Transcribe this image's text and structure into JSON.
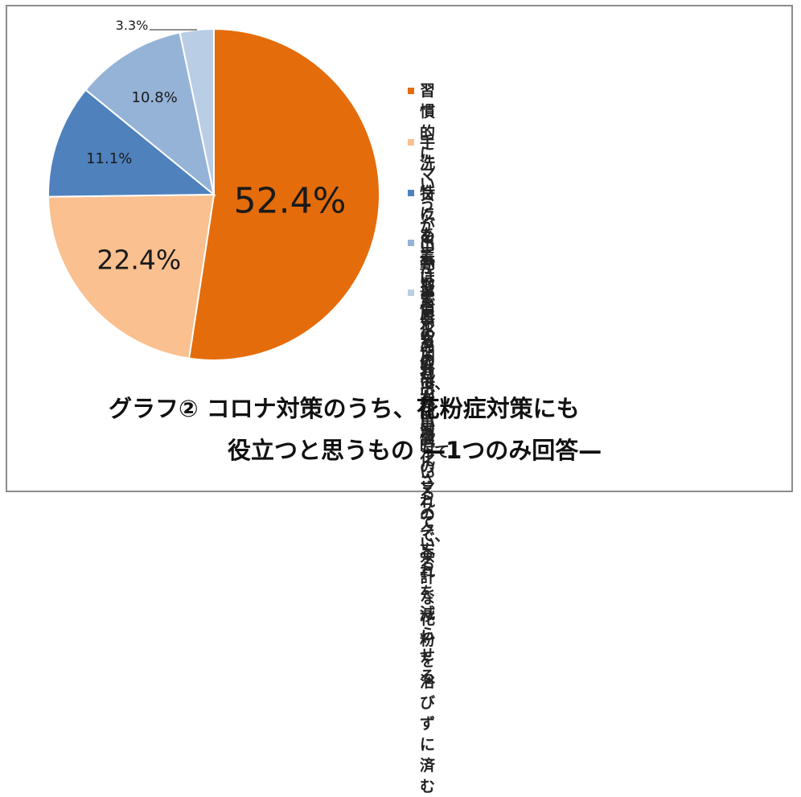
{
  "chart_data": {
    "type": "pie",
    "title_line1": "グラフ②  コロナ対策のうち、花粉症対策にも",
    "title_line2": "役立つと思うもの —1つのみ回答—",
    "slices": [
      {
        "label": "習慣的にマスクを着けているので、外出時のマスク忘れを減らせる",
        "label_line1": "習慣的にマスクを着けているので、外出時",
        "label_line2": "のマスク忘れを減らせる",
        "value": 52.4,
        "display": "52.4%",
        "color": "#e46c0a"
      },
      {
        "label": "手洗いうがいが習慣化されている",
        "label_line1": "手洗いうがいが習慣化されている",
        "label_line2": "",
        "value": 22.4,
        "display": "22.4%",
        "color": "#fac08f"
      },
      {
        "label": "特にあてはまるものはない",
        "label_line1": "特にあてはまるものはない",
        "label_line2": "",
        "value": 11.1,
        "display": "11.1%",
        "color": "#4f81bd"
      },
      {
        "label": "出勤などでの外出が減っているので、余計な花粉を浴びずに済む",
        "label_line1": "出勤などでの外出が減っているので、余計",
        "label_line2": "な花粉を浴びずに済む",
        "value": 10.8,
        "display": "10.8%",
        "color": "#95b3d7"
      },
      {
        "label": "部屋の加湿が習慣化されている",
        "label_line1": "部屋の加湿が習慣化されている",
        "label_line2": "",
        "value": 3.3,
        "display": "3.3%",
        "color": "#b9cde5"
      }
    ],
    "legend_position": "right"
  }
}
